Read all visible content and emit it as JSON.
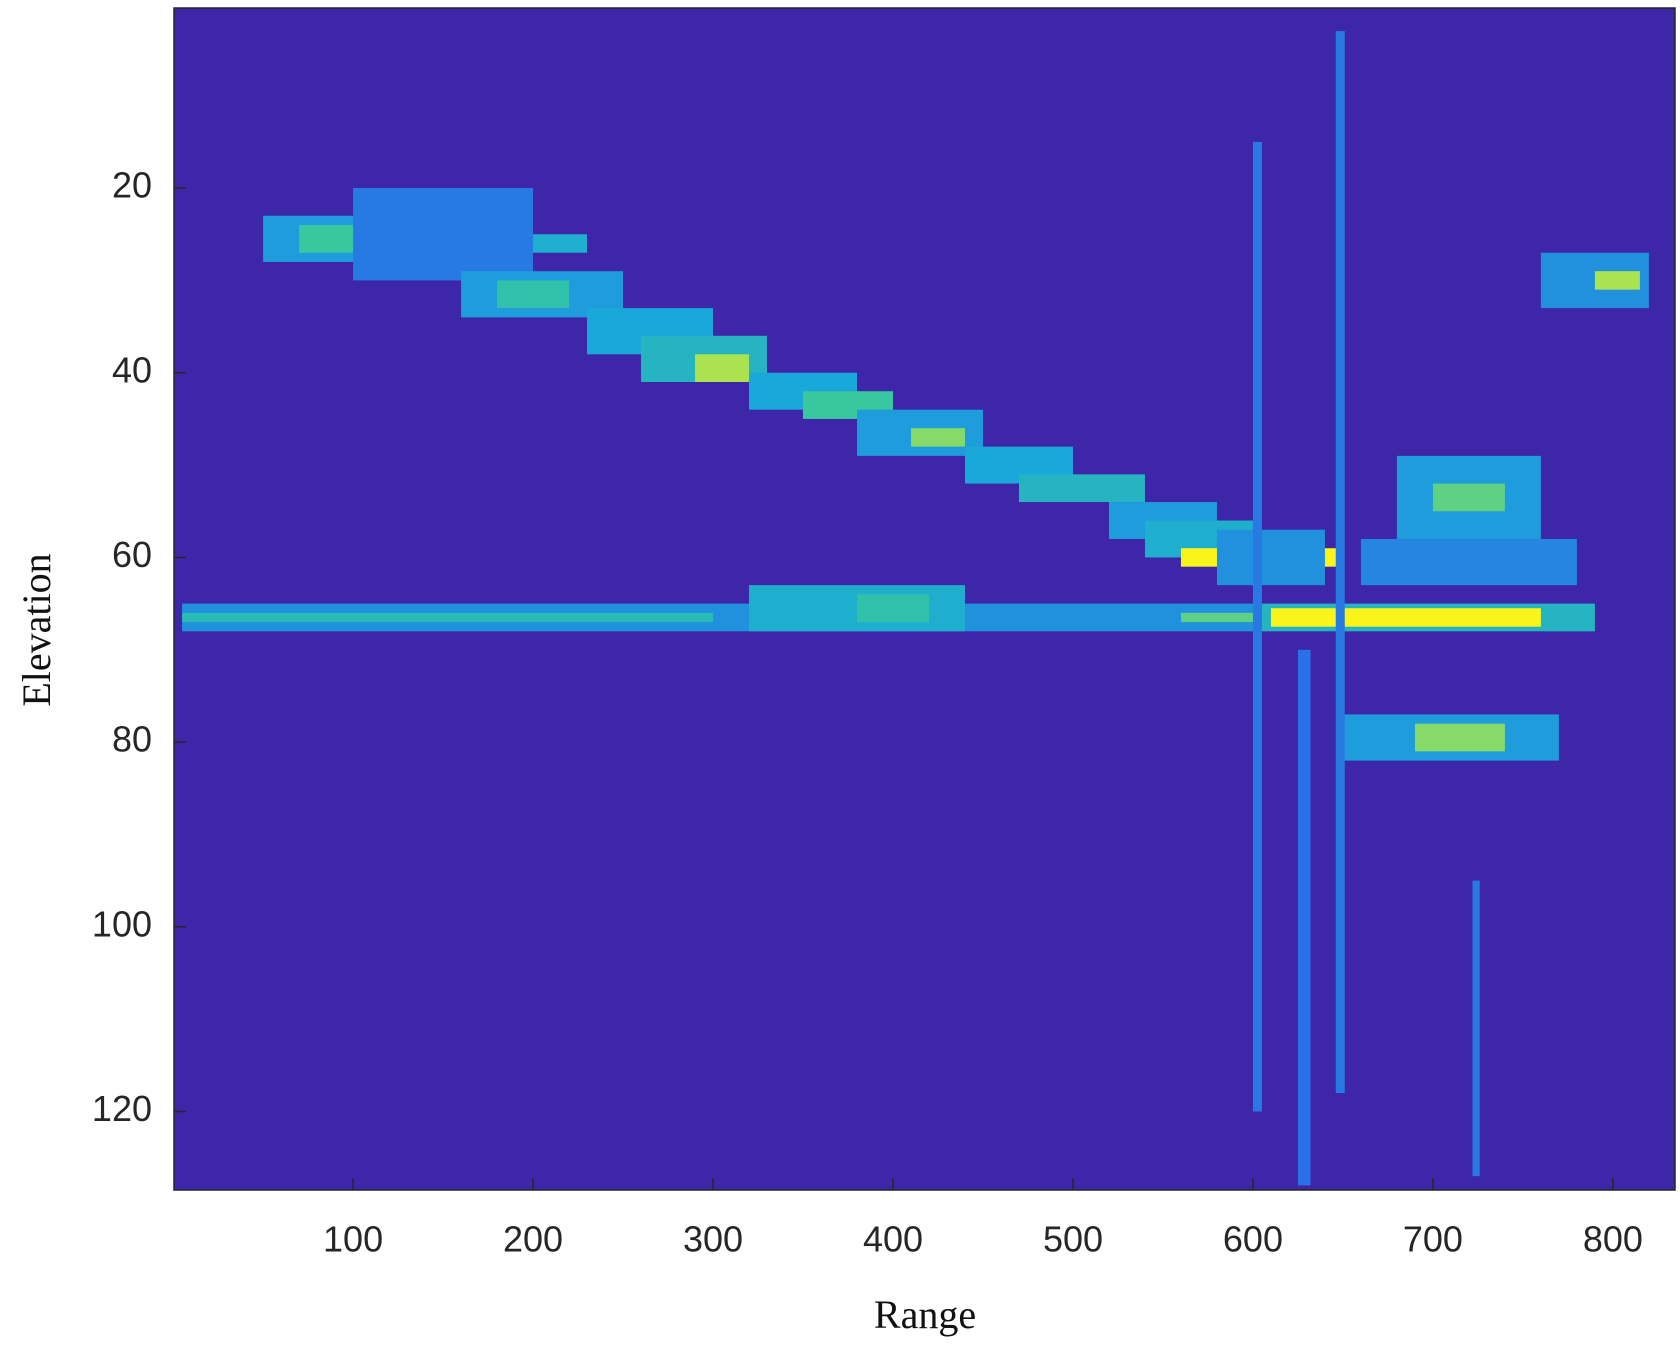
{
  "chart_data": {
    "type": "heatmap",
    "x_label": "Range",
    "y_label": "Elevation",
    "xlim": [
      0.5,
      834.5
    ],
    "ylim": [
      0.5,
      128.5
    ],
    "y_reversed": true,
    "xticks": [
      100,
      200,
      300,
      400,
      500,
      600,
      700,
      800
    ],
    "yticks": [
      20,
      40,
      60,
      80,
      100,
      120
    ],
    "clim": [
      0,
      1
    ],
    "background_value": 0,
    "colormap": [
      "#3d26a8",
      "#2c6fe6",
      "#1aa7d9",
      "#37c8a0",
      "#f9f51a"
    ],
    "regions": [
      [
        50,
        160,
        23,
        28,
        0.45
      ],
      [
        70,
        140,
        24,
        27,
        0.75
      ],
      [
        120,
        230,
        25,
        27,
        0.55
      ],
      [
        140,
        170,
        25,
        27,
        1
      ],
      [
        100,
        200,
        20,
        30,
        0.3
      ],
      [
        160,
        250,
        29,
        34,
        0.45
      ],
      [
        180,
        220,
        30,
        33,
        0.7
      ],
      [
        230,
        300,
        33,
        38,
        0.5
      ],
      [
        260,
        330,
        36,
        41,
        0.6
      ],
      [
        290,
        320,
        38,
        41,
        0.9
      ],
      [
        320,
        380,
        40,
        44,
        0.5
      ],
      [
        350,
        400,
        42,
        45,
        0.75
      ],
      [
        380,
        450,
        44,
        49,
        0.45
      ],
      [
        410,
        440,
        46,
        48,
        0.85
      ],
      [
        440,
        500,
        48,
        52,
        0.5
      ],
      [
        470,
        540,
        51,
        54,
        0.6
      ],
      [
        520,
        580,
        54,
        58,
        0.45
      ],
      [
        540,
        600,
        56,
        60,
        0.55
      ],
      [
        560,
        650,
        59,
        61,
        1
      ],
      [
        580,
        640,
        57,
        63,
        0.4
      ],
      [
        5,
        600,
        65,
        68,
        0.4
      ],
      [
        5,
        300,
        66,
        67,
        0.65
      ],
      [
        320,
        440,
        63,
        68,
        0.55
      ],
      [
        380,
        420,
        64,
        67,
        0.7
      ],
      [
        600,
        790,
        65,
        68,
        0.6
      ],
      [
        610,
        760,
        65.5,
        67.5,
        1
      ],
      [
        560,
        600,
        66,
        67,
        0.8
      ],
      [
        680,
        760,
        49,
        58,
        0.45
      ],
      [
        700,
        740,
        52,
        55,
        0.8
      ],
      [
        660,
        780,
        58,
        63,
        0.35
      ],
      [
        650,
        770,
        77,
        82,
        0.45
      ],
      [
        690,
        740,
        78,
        81,
        0.85
      ],
      [
        760,
        820,
        27,
        33,
        0.4
      ],
      [
        790,
        815,
        29,
        31,
        0.9
      ],
      [
        600,
        605,
        15,
        120,
        0.3
      ],
      [
        646,
        651,
        3,
        118,
        0.3
      ],
      [
        625,
        632,
        70,
        128,
        0.25
      ],
      [
        722,
        726,
        95,
        127,
        0.3
      ]
    ]
  }
}
